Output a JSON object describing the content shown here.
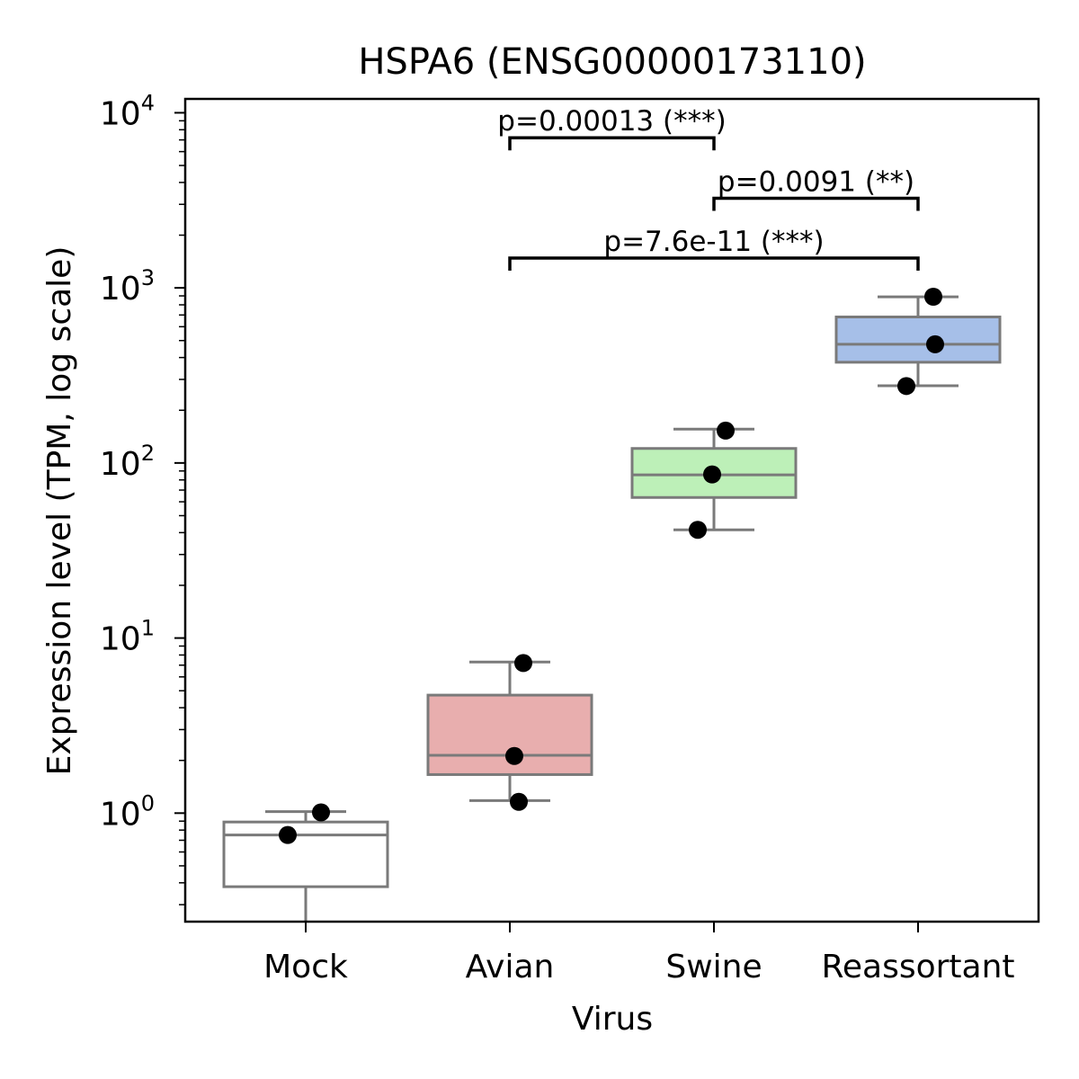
{
  "chart_data": {
    "type": "box",
    "title": "HSPA6 (ENSG00000173110)",
    "xlabel": "Virus",
    "ylabel": "Expression level (TPM, log scale)",
    "yscale": "log",
    "ylim": [
      0.24,
      12000
    ],
    "yticks": [
      {
        "value": 1,
        "base": "10",
        "exp": "0"
      },
      {
        "value": 10,
        "base": "10",
        "exp": "1"
      },
      {
        "value": 100,
        "base": "10",
        "exp": "2"
      },
      {
        "value": 1000,
        "base": "10",
        "exp": "3"
      },
      {
        "value": 10000,
        "base": "10",
        "exp": "4"
      }
    ],
    "categories": [
      "Mock",
      "Avian",
      "Swine",
      "Reassortant"
    ],
    "groups": [
      {
        "name": "Mock",
        "color": "#ffffff",
        "min": 0.2,
        "q1": 0.38,
        "median": 0.75,
        "q3": 0.89,
        "max": 1.02,
        "points": [
          0.75,
          1.01,
          0.2
        ]
      },
      {
        "name": "Avian",
        "color": "#e8aeae",
        "min": 1.18,
        "q1": 1.66,
        "median": 2.14,
        "q3": 4.72,
        "max": 7.3,
        "points": [
          7.2,
          2.12,
          1.16
        ]
      },
      {
        "name": "Swine",
        "color": "#bdf0b8",
        "min": 41.5,
        "q1": 63.5,
        "median": 85.5,
        "q3": 121,
        "max": 156,
        "points": [
          153,
          86,
          41.5
        ]
      },
      {
        "name": "Reassortant",
        "color": "#a6bfe8",
        "min": 276,
        "q1": 376,
        "median": 476,
        "q3": 682,
        "max": 888,
        "points": [
          890,
          476,
          275
        ]
      }
    ],
    "annotations": [
      {
        "label": "p=0.00013 (***)",
        "from": "Avian",
        "to": "Swine",
        "y": 7200
      },
      {
        "label": "p=0.0091 (**)",
        "from": "Swine",
        "to": "Reassortant",
        "y": 3250
      },
      {
        "label": "p=7.6e-11 (***)",
        "from": "Avian",
        "to": "Reassortant",
        "y": 1480
      }
    ],
    "grid": false,
    "legend": "none"
  }
}
